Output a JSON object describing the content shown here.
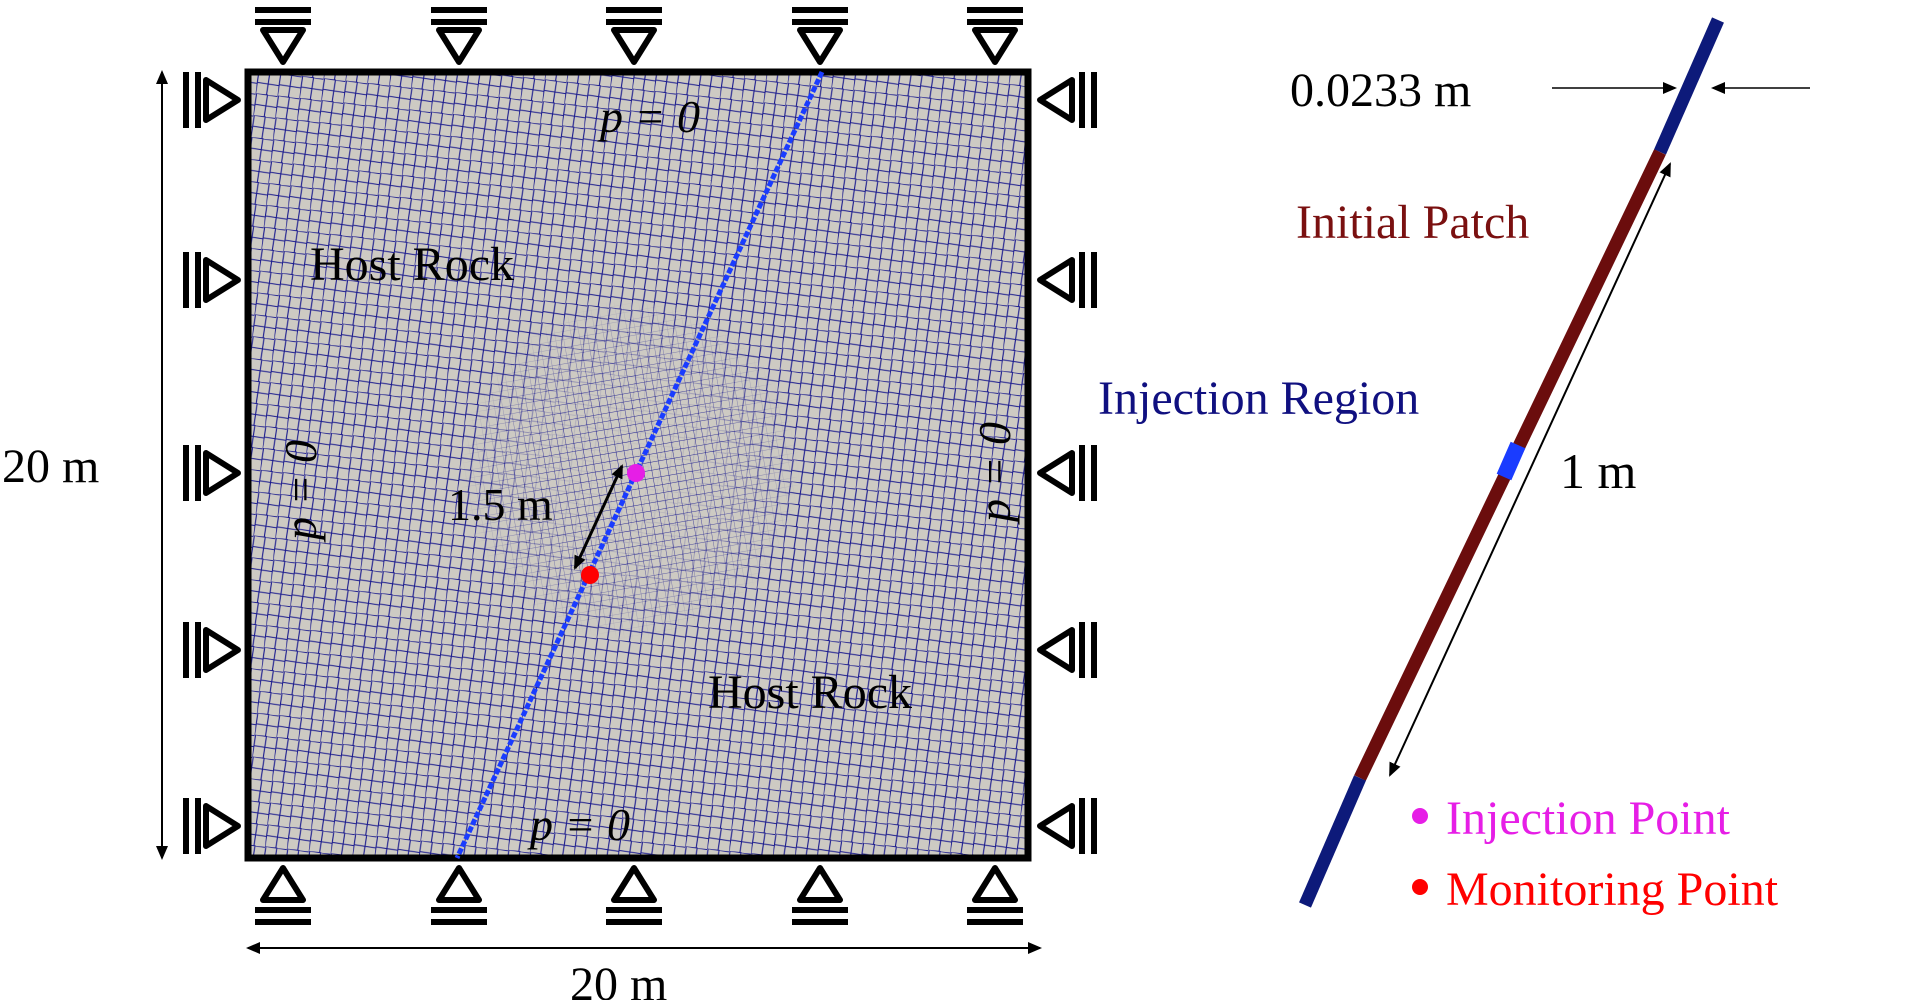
{
  "left_panel": {
    "labels": {
      "host_rock_upper": "Host Rock",
      "host_rock_lower": "Host Rock",
      "p_top": "p = 0",
      "p_bottom": "p = 0",
      "p_left": "p = 0",
      "p_right": "p = 0",
      "distance": "1.5 m",
      "height_dim": "20 m",
      "width_dim": "20 m"
    }
  },
  "right_panel": {
    "labels": {
      "thickness": "0.0233 m",
      "initial_patch": "Initial Patch",
      "injection_region": "Injection Region",
      "patch_length": "1 m"
    },
    "legend": [
      {
        "label": "Injection Point",
        "color": "#e61ee6"
      },
      {
        "label": "Monitoring Point",
        "color": "#ff0000"
      }
    ]
  },
  "colors": {
    "mesh_fill": "#cdcac3",
    "mesh_line": "#1b1b8e",
    "fault_line": "#1a3cff",
    "patch": "#6b0d0d",
    "fault_outer": "#0d1a7a",
    "injection_region": "#1a3cff",
    "injection_point": "#e61ee6",
    "monitoring_point": "#ff0000",
    "host_rock_text": "#000000",
    "patch_text": "#7a1010",
    "region_text": "#101080"
  }
}
